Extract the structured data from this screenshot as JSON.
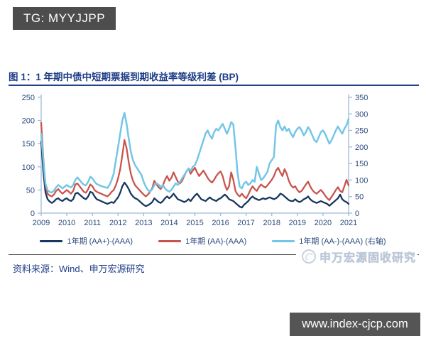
{
  "badge": {
    "text": "TG: MYYJJPP"
  },
  "figure": {
    "title": "图 1：1 年期中债中短期票据到期收益率等级利差 (BP)",
    "source": "资料来源：Wind、申万宏源研究",
    "watermark": "申万宏源固收研究"
  },
  "footer": {
    "url": "www.index-cjcp.com"
  },
  "colors": {
    "navy_series": "#17375e",
    "red_series": "#c9544e",
    "lightblue_series": "#74c6e7",
    "axis_line": "#9fb9d8",
    "axis_text": "#2a4a7d",
    "title_navy": "#1e3d87",
    "bar_gray": "#4d4d4d"
  },
  "chart_data": {
    "type": "line",
    "title": "1 年期中债中短期票据到期收益率等级利差 (BP)",
    "x_tick_labels": [
      "2009",
      "2010",
      "2011",
      "2012",
      "2013",
      "2014",
      "2015",
      "2016",
      "2017",
      "2018",
      "2019",
      "2020",
      "2021"
    ],
    "x_range_years": [
      2009,
      2021
    ],
    "points_per_year": 12,
    "left_axis": {
      "min": 0,
      "max": 250,
      "ticks": [
        0,
        50,
        100,
        150,
        200,
        250
      ]
    },
    "right_axis": {
      "min": 0,
      "max": 350,
      "ticks": [
        0,
        50,
        100,
        150,
        200,
        250,
        300,
        350
      ]
    },
    "grid": false,
    "legend_position": "bottom",
    "series": [
      {
        "name": "1年期 (AA+)-(AAA)",
        "axis": "left",
        "color": "#17375e",
        "values": [
          155,
          90,
          45,
          30,
          25,
          22,
          25,
          30,
          32,
          28,
          26,
          30,
          32,
          28,
          26,
          30,
          42,
          44,
          40,
          36,
          32,
          30,
          36,
          46,
          44,
          36,
          30,
          28,
          26,
          24,
          22,
          20,
          22,
          24,
          22,
          28,
          34,
          44,
          58,
          66,
          60,
          52,
          42,
          36,
          32,
          30,
          26,
          22,
          18,
          15,
          17,
          20,
          24,
          32,
          28,
          24,
          22,
          26,
          32,
          36,
          32,
          36,
          42,
          36,
          30,
          28,
          26,
          24,
          26,
          30,
          26,
          32,
          38,
          42,
          36,
          30,
          28,
          26,
          30,
          34,
          30,
          28,
          26,
          30,
          32,
          36,
          40,
          36,
          30,
          28,
          26,
          22,
          18,
          14,
          12,
          18,
          22,
          26,
          32,
          36,
          32,
          30,
          28,
          30,
          32,
          30,
          32,
          34,
          32,
          30,
          32,
          36,
          42,
          40,
          36,
          32,
          28,
          26,
          26,
          30,
          26,
          24,
          26,
          30,
          32,
          36,
          30,
          26,
          24,
          22,
          24,
          26,
          24,
          22,
          20,
          16,
          20,
          24,
          28,
          32,
          40,
          30,
          26,
          24,
          20
        ]
      },
      {
        "name": "1年期 (AA)-(AAA)",
        "axis": "left",
        "color": "#c9544e",
        "values": [
          195,
          120,
          60,
          42,
          38,
          36,
          40,
          48,
          52,
          46,
          42,
          46,
          50,
          46,
          42,
          48,
          62,
          64,
          58,
          52,
          46,
          44,
          52,
          62,
          58,
          50,
          46,
          44,
          42,
          40,
          38,
          36,
          40,
          46,
          50,
          60,
          75,
          95,
          125,
          158,
          140,
          110,
          85,
          70,
          60,
          55,
          50,
          45,
          40,
          36,
          40,
          46,
          54,
          70,
          62,
          56,
          52,
          60,
          72,
          80,
          70,
          76,
          88,
          78,
          68,
          64,
          70,
          80,
          90,
          96,
          85,
          92,
          98,
          88,
          80,
          86,
          92,
          84,
          76,
          70,
          66,
          72,
          80,
          86,
          90,
          80,
          62,
          50,
          58,
          88,
          72,
          48,
          40,
          36,
          42,
          36,
          32,
          40,
          50,
          58,
          52,
          48,
          56,
          62,
          58,
          55,
          60,
          66,
          72,
          80,
          92,
          98,
          88,
          80,
          95,
          85,
          70,
          60,
          55,
          58,
          50,
          45,
          48,
          55,
          62,
          68,
          58,
          50,
          45,
          42,
          46,
          50,
          45,
          38,
          32,
          28,
          35,
          42,
          50,
          56,
          48,
          45,
          58,
          72,
          60
        ]
      },
      {
        "name": "1年期 (AA-)-(AAA) (右轴)",
        "axis": "right",
        "color": "#74c6e7",
        "values": [
          240,
          160,
          90,
          70,
          64,
          62,
          68,
          78,
          85,
          80,
          75,
          80,
          85,
          80,
          78,
          85,
          100,
          108,
          100,
          92,
          86,
          84,
          95,
          110,
          105,
          95,
          88,
          85,
          82,
          80,
          78,
          76,
          85,
          100,
          120,
          160,
          200,
          240,
          280,
          303,
          270,
          225,
          185,
          160,
          145,
          135,
          125,
          115,
          95,
          80,
          70,
          65,
          72,
          85,
          90,
          86,
          78,
          85,
          75,
          68,
          65,
          70,
          80,
          90,
          85,
          95,
          105,
          115,
          125,
          135,
          128,
          140,
          145,
          160,
          180,
          200,
          220,
          240,
          250,
          235,
          225,
          245,
          255,
          250,
          260,
          270,
          255,
          240,
          255,
          275,
          268,
          200,
          120,
          80,
          75,
          90,
          95,
          85,
          90,
          100,
          95,
          140,
          120,
          100,
          105,
          115,
          125,
          150,
          160,
          170,
          265,
          280,
          260,
          250,
          262,
          248,
          255,
          240,
          230,
          245,
          255,
          260,
          250,
          235,
          245,
          260,
          250,
          235,
          220,
          215,
          230,
          245,
          250,
          240,
          225,
          210,
          220,
          235,
          250,
          262,
          250,
          240,
          255,
          265,
          285
        ]
      }
    ]
  }
}
